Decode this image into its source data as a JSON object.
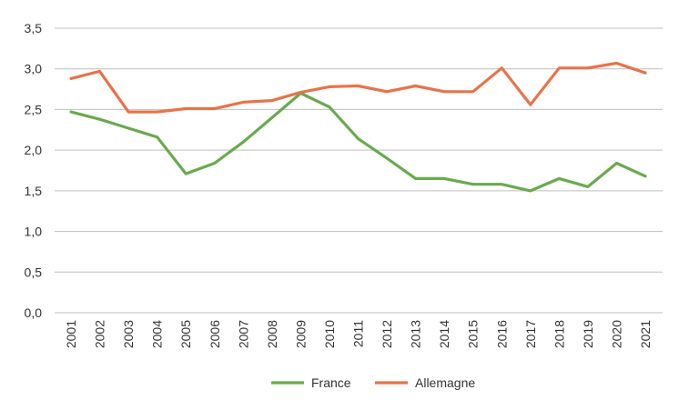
{
  "chart_data": {
    "type": "line",
    "categories": [
      "2001",
      "2002",
      "2003",
      "2004",
      "2005",
      "2006",
      "2007",
      "2008",
      "2009",
      "2010",
      "2011",
      "2012",
      "2013",
      "2014",
      "2015",
      "2016",
      "2017",
      "2018",
      "2019",
      "2020",
      "2021"
    ],
    "y_ticks": [
      "0,0",
      "0,5",
      "1,0",
      "1,5",
      "2,0",
      "2,5",
      "3,0",
      "3,5"
    ],
    "ylim": [
      0,
      3.5
    ],
    "grid": true,
    "legend_position": "bottom",
    "series": [
      {
        "name": "France",
        "color": "#6aaa4f",
        "values": [
          2.47,
          2.38,
          2.27,
          2.16,
          1.71,
          1.84,
          2.1,
          2.4,
          2.7,
          2.53,
          2.14,
          1.9,
          1.65,
          1.65,
          1.58,
          1.58,
          1.5,
          1.65,
          1.55,
          1.84,
          1.68
        ]
      },
      {
        "name": "Allemagne",
        "color": "#e8734a",
        "values": [
          2.88,
          2.97,
          2.47,
          2.47,
          2.51,
          2.51,
          2.59,
          2.61,
          2.71,
          2.78,
          2.79,
          2.72,
          2.79,
          2.72,
          2.72,
          3.01,
          2.56,
          3.01,
          3.01,
          3.07,
          2.95
        ]
      }
    ]
  }
}
